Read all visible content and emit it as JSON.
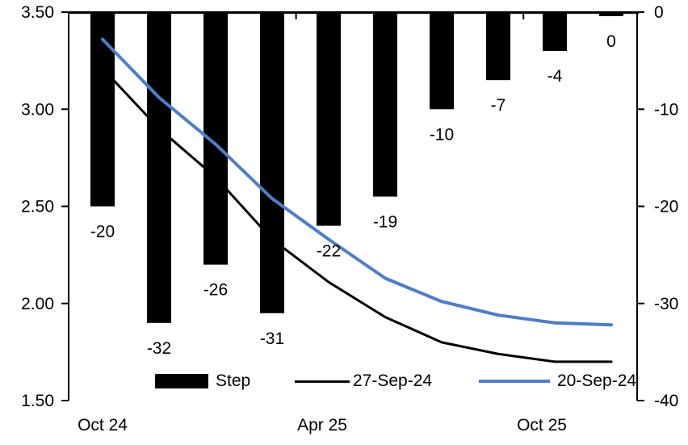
{
  "chart_data": {
    "type": "combo-bar-line",
    "title": "",
    "num_categories": 10,
    "x_tick_labels": [
      {
        "category_index": 0,
        "label": "Oct 24"
      },
      {
        "category_index": 4,
        "label": "Apr 25"
      },
      {
        "category_index": 8,
        "label": "Oct 25"
      }
    ],
    "bar_series": {
      "name": "Step",
      "axis": "right",
      "color": "#000000",
      "values": [
        -20,
        -32,
        -26,
        -31,
        -22,
        -19,
        -10,
        -7,
        -4,
        0
      ],
      "labels": [
        "-20",
        "-32",
        "-26",
        "-31",
        "-22",
        "-19",
        "-10",
        "-7",
        "-4",
        "0"
      ]
    },
    "line_series": [
      {
        "name": "27-Sep-24",
        "axis": "left",
        "color": "#000000",
        "values": [
          3.21,
          2.9,
          2.65,
          2.33,
          2.11,
          1.93,
          1.8,
          1.74,
          1.7,
          1.7
        ]
      },
      {
        "name": "20-Sep-24",
        "axis": "left",
        "color": "#4d7ec8",
        "values": [
          3.36,
          3.06,
          2.82,
          2.54,
          2.33,
          2.13,
          2.01,
          1.94,
          1.9,
          1.89
        ]
      }
    ],
    "left_axis": {
      "min": 1.5,
      "max": 3.5,
      "tick_labels": [
        "3.50",
        "3.00",
        "2.50",
        "2.00",
        "1.50"
      ]
    },
    "right_axis": {
      "min": -40,
      "max": 0,
      "tick_labels": [
        "0",
        "-10",
        "-20",
        "-30",
        "-40"
      ]
    },
    "legend_position": "bottom",
    "grid": false
  }
}
